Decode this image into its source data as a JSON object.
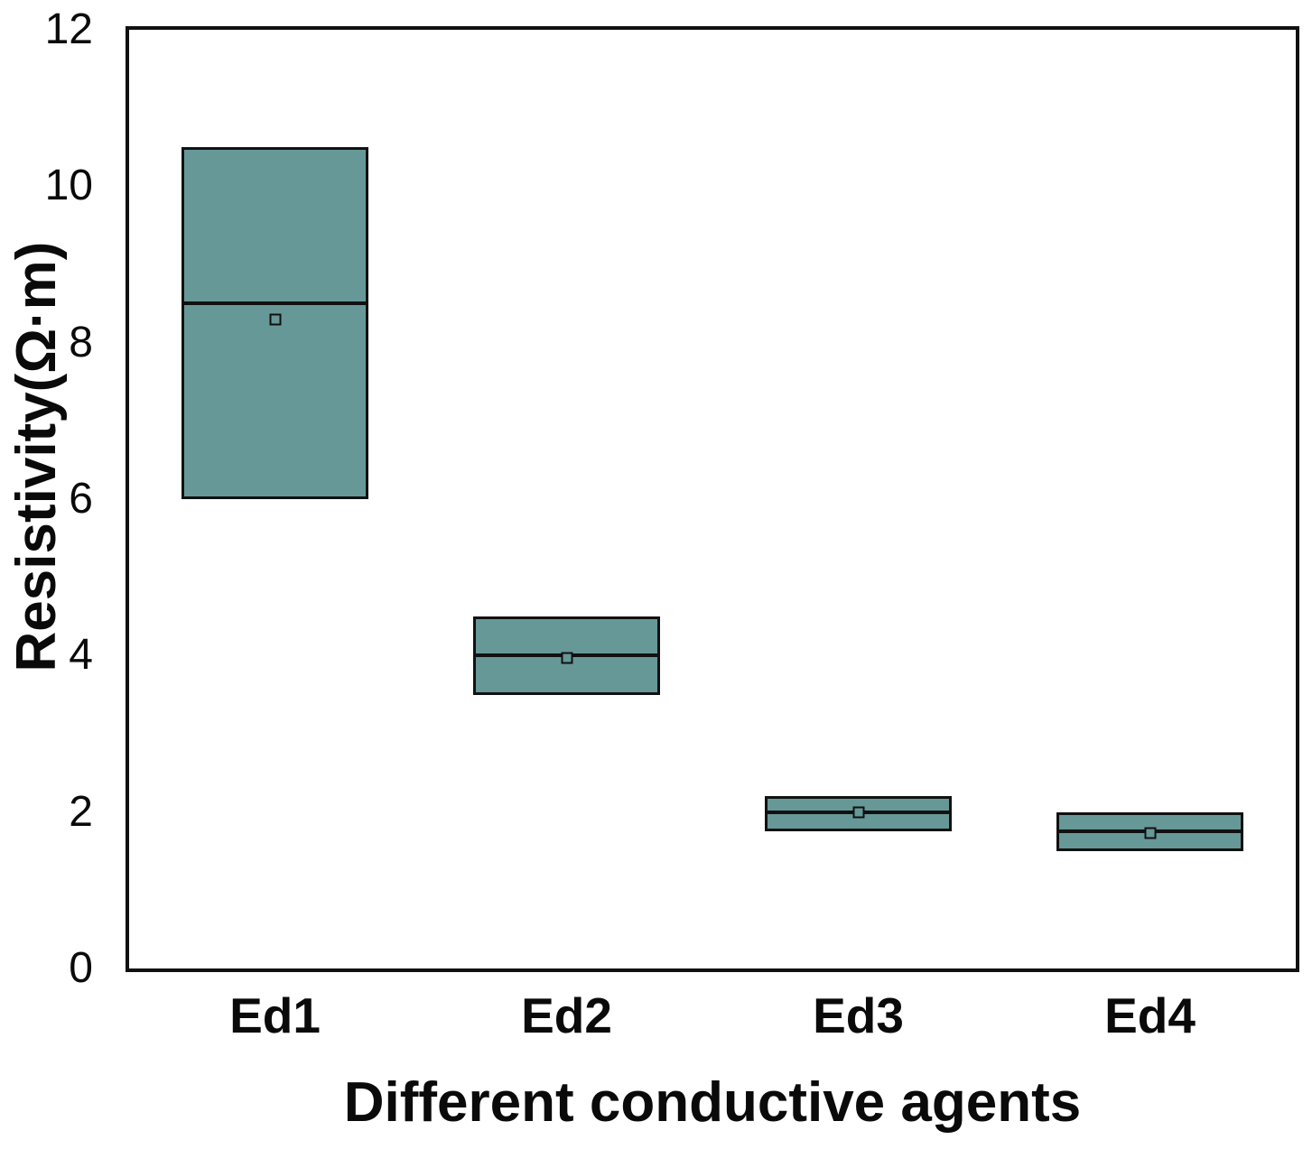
{
  "chart_data": {
    "type": "box",
    "title": "",
    "xlabel": "Different conductive agents",
    "ylabel": "Resistivity(Ω·m)",
    "categories": [
      "Ed1",
      "Ed2",
      "Ed3",
      "Ed4"
    ],
    "series": [
      {
        "name": "Ed1",
        "q1": 6.0,
        "median": 8.5,
        "q3": 10.5,
        "mean": 8.3
      },
      {
        "name": "Ed2",
        "q1": 3.5,
        "median": 4.0,
        "q3": 4.5,
        "mean": 3.97
      },
      {
        "name": "Ed3",
        "q1": 1.75,
        "median": 2.0,
        "q3": 2.2,
        "mean": 2.0
      },
      {
        "name": "Ed4",
        "q1": 1.5,
        "median": 1.75,
        "q3": 2.0,
        "mean": 1.73
      }
    ],
    "ylim": [
      0,
      12
    ],
    "yticks": [
      0,
      2,
      4,
      6,
      8,
      10,
      12
    ],
    "grid": false,
    "legend": "none",
    "whiskers": false,
    "mean_marker": "open-square",
    "box_width_fraction": 0.64,
    "colors": {
      "box_fill": "#679898",
      "box_border": "#111111",
      "frame": "#111111",
      "text": "#0a0a0a",
      "background": "#ffffff"
    }
  }
}
